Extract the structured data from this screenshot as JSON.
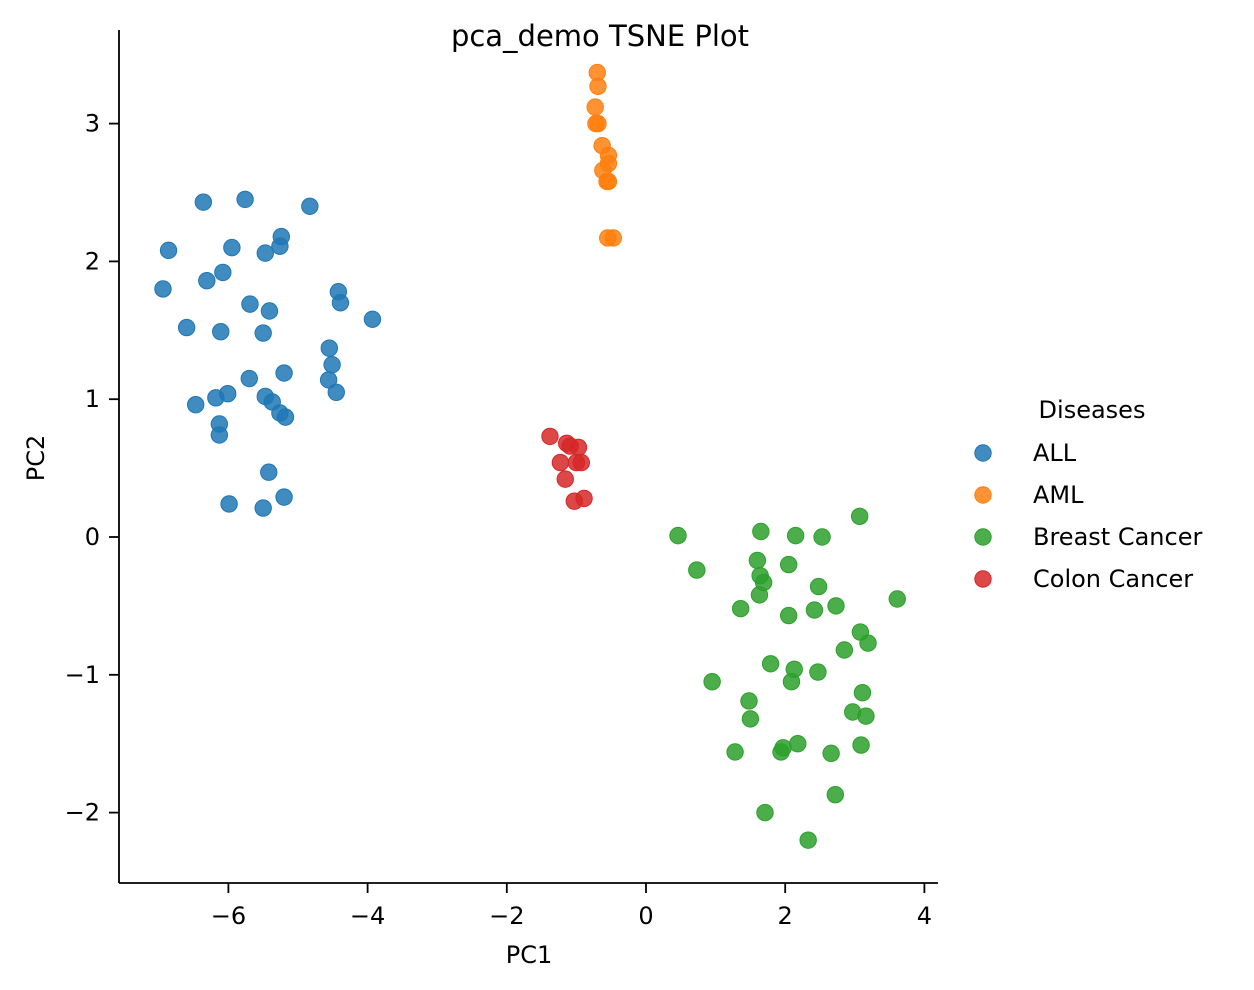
{
  "chart_data": {
    "type": "scatter",
    "title": "pca_demo TSNE Plot",
    "xlabel": "PC1",
    "ylabel": "PC2",
    "xlim": [
      -7.5,
      4.2
    ],
    "ylim": [
      -2.5,
      3.6
    ],
    "xticks": [
      -6,
      -4,
      -2,
      0,
      2,
      4
    ],
    "yticks": [
      -2,
      -1,
      0,
      1,
      2,
      3
    ],
    "xtick_labels": [
      "−6",
      "−4",
      "−2",
      "0",
      "2",
      "4"
    ],
    "ytick_labels": [
      "−2",
      "−1",
      "0",
      "1",
      "2",
      "3"
    ],
    "grid": false,
    "legend": {
      "title": "Diseases",
      "placement": "right-outside"
    },
    "series": [
      {
        "name": "ALL",
        "color": "#1f77b4",
        "points": [
          [
            -6.36,
            2.43
          ],
          [
            -5.76,
            2.45
          ],
          [
            -4.83,
            2.4
          ],
          [
            -6.86,
            2.08
          ],
          [
            -5.95,
            2.1
          ],
          [
            -5.24,
            2.18
          ],
          [
            -5.26,
            2.11
          ],
          [
            -5.47,
            2.06
          ],
          [
            -6.31,
            1.86
          ],
          [
            -6.08,
            1.92
          ],
          [
            -6.94,
            1.8
          ],
          [
            -5.69,
            1.69
          ],
          [
            -5.41,
            1.64
          ],
          [
            -4.42,
            1.78
          ],
          [
            -4.39,
            1.7
          ],
          [
            -3.93,
            1.58
          ],
          [
            -6.6,
            1.52
          ],
          [
            -6.11,
            1.49
          ],
          [
            -5.5,
            1.48
          ],
          [
            -4.55,
            1.37
          ],
          [
            -4.51,
            1.25
          ],
          [
            -5.2,
            1.19
          ],
          [
            -5.7,
            1.15
          ],
          [
            -4.56,
            1.14
          ],
          [
            -4.45,
            1.05
          ],
          [
            -6.01,
            1.04
          ],
          [
            -6.18,
            1.01
          ],
          [
            -5.47,
            1.02
          ],
          [
            -5.37,
            0.98
          ],
          [
            -6.47,
            0.96
          ],
          [
            -5.26,
            0.9
          ],
          [
            -5.18,
            0.87
          ],
          [
            -6.13,
            0.82
          ],
          [
            -6.13,
            0.74
          ],
          [
            -5.42,
            0.47
          ],
          [
            -5.2,
            0.29
          ],
          [
            -5.99,
            0.24
          ],
          [
            -5.5,
            0.21
          ]
        ]
      },
      {
        "name": "AML",
        "color": "#ff7f0e",
        "points": [
          [
            -0.7,
            3.37
          ],
          [
            -0.69,
            3.27
          ],
          [
            -0.73,
            3.12
          ],
          [
            -0.72,
            3.0
          ],
          [
            -0.69,
            3.0
          ],
          [
            -0.63,
            2.84
          ],
          [
            -0.54,
            2.77
          ],
          [
            -0.54,
            2.71
          ],
          [
            -0.62,
            2.66
          ],
          [
            -0.56,
            2.58
          ],
          [
            -0.54,
            2.58
          ],
          [
            -0.55,
            2.17
          ],
          [
            -0.47,
            2.17
          ]
        ]
      },
      {
        "name": "Breast Cancer",
        "color": "#2ca02c",
        "points": [
          [
            0.46,
            0.01
          ],
          [
            1.65,
            0.04
          ],
          [
            2.15,
            0.01
          ],
          [
            2.53,
            0.0
          ],
          [
            3.07,
            0.15
          ],
          [
            0.73,
            -0.24
          ],
          [
            1.6,
            -0.17
          ],
          [
            2.05,
            -0.2
          ],
          [
            1.64,
            -0.28
          ],
          [
            1.69,
            -0.33
          ],
          [
            2.48,
            -0.36
          ],
          [
            1.63,
            -0.42
          ],
          [
            3.61,
            -0.45
          ],
          [
            1.36,
            -0.52
          ],
          [
            2.42,
            -0.53
          ],
          [
            2.73,
            -0.5
          ],
          [
            2.05,
            -0.57
          ],
          [
            3.08,
            -0.69
          ],
          [
            3.19,
            -0.77
          ],
          [
            2.85,
            -0.82
          ],
          [
            1.79,
            -0.92
          ],
          [
            2.13,
            -0.96
          ],
          [
            2.47,
            -0.98
          ],
          [
            0.95,
            -1.05
          ],
          [
            2.09,
            -1.05
          ],
          [
            3.11,
            -1.13
          ],
          [
            1.48,
            -1.19
          ],
          [
            2.97,
            -1.27
          ],
          [
            3.16,
            -1.3
          ],
          [
            1.5,
            -1.32
          ],
          [
            2.18,
            -1.5
          ],
          [
            3.09,
            -1.51
          ],
          [
            1.97,
            -1.53
          ],
          [
            1.28,
            -1.56
          ],
          [
            1.94,
            -1.56
          ],
          [
            2.66,
            -1.57
          ],
          [
            2.72,
            -1.87
          ],
          [
            1.71,
            -2.0
          ],
          [
            2.33,
            -2.2
          ]
        ]
      },
      {
        "name": "Colon Cancer",
        "color": "#d62728",
        "points": [
          [
            -1.38,
            0.73
          ],
          [
            -1.14,
            0.68
          ],
          [
            -1.09,
            0.66
          ],
          [
            -0.97,
            0.65
          ],
          [
            -1.23,
            0.54
          ],
          [
            -1.0,
            0.54
          ],
          [
            -0.93,
            0.54
          ],
          [
            -1.16,
            0.42
          ],
          [
            -0.89,
            0.28
          ],
          [
            -1.03,
            0.26
          ]
        ]
      }
    ]
  }
}
